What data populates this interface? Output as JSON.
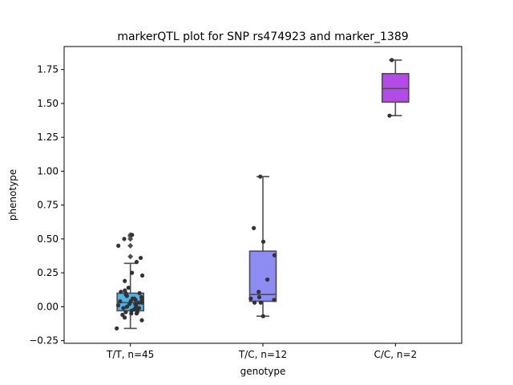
{
  "chart_data": {
    "type": "box",
    "title": "markerQTL plot for SNP rs474923 and marker_1389",
    "xlabel": "genotype",
    "ylabel": "phenotype",
    "ylim": [
      -0.27,
      1.92
    ],
    "yticks": [
      -0.25,
      0.0,
      0.25,
      0.5,
      0.75,
      1.0,
      1.25,
      1.5,
      1.75
    ],
    "ytick_labels": [
      "−0.25",
      "0.00",
      "0.25",
      "0.50",
      "0.75",
      "1.00",
      "1.25",
      "1.50",
      "1.75"
    ],
    "categories": [
      "T/T, n=45",
      "T/C, n=12",
      "C/C, n=2"
    ],
    "box_colors": [
      "#4fb3e8",
      "#8c8cf2",
      "#b44be8"
    ],
    "boxes": [
      {
        "category": "T/T, n=45",
        "whisker_low": -0.16,
        "q1": -0.03,
        "median": 0.03,
        "q3": 0.1,
        "whisker_high": 0.32,
        "fliers": [
          0.37,
          0.45,
          0.5,
          0.52,
          0.53
        ]
      },
      {
        "category": "T/C, n=12",
        "whisker_low": -0.07,
        "q1": 0.04,
        "median": 0.09,
        "q3": 0.41,
        "whisker_high": 0.96,
        "fliers": []
      },
      {
        "category": "C/C, n=2",
        "whisker_low": 1.41,
        "q1": 1.51,
        "median": 1.61,
        "q3": 1.72,
        "whisker_high": 1.82,
        "fliers": []
      }
    ],
    "points": [
      {
        "category": "T/T, n=45",
        "values": [
          -0.16,
          -0.1,
          -0.08,
          -0.06,
          -0.05,
          -0.05,
          -0.04,
          -0.04,
          -0.03,
          -0.03,
          -0.02,
          -0.02,
          -0.01,
          -0.01,
          0.0,
          0.0,
          0.01,
          0.01,
          0.02,
          0.02,
          0.03,
          0.03,
          0.04,
          0.04,
          0.05,
          0.05,
          0.06,
          0.06,
          0.07,
          0.07,
          0.08,
          0.09,
          0.1,
          0.1,
          0.11,
          0.12,
          0.14,
          0.19,
          0.23,
          0.25,
          0.33,
          0.36,
          0.45,
          0.5,
          0.53
        ]
      },
      {
        "category": "T/C, n=12",
        "values": [
          -0.07,
          0.03,
          0.03,
          0.05,
          0.06,
          0.07,
          0.11,
          0.2,
          0.38,
          0.48,
          0.58,
          0.96
        ]
      },
      {
        "category": "C/C, n=2",
        "values": [
          1.41,
          1.82
        ]
      }
    ]
  }
}
